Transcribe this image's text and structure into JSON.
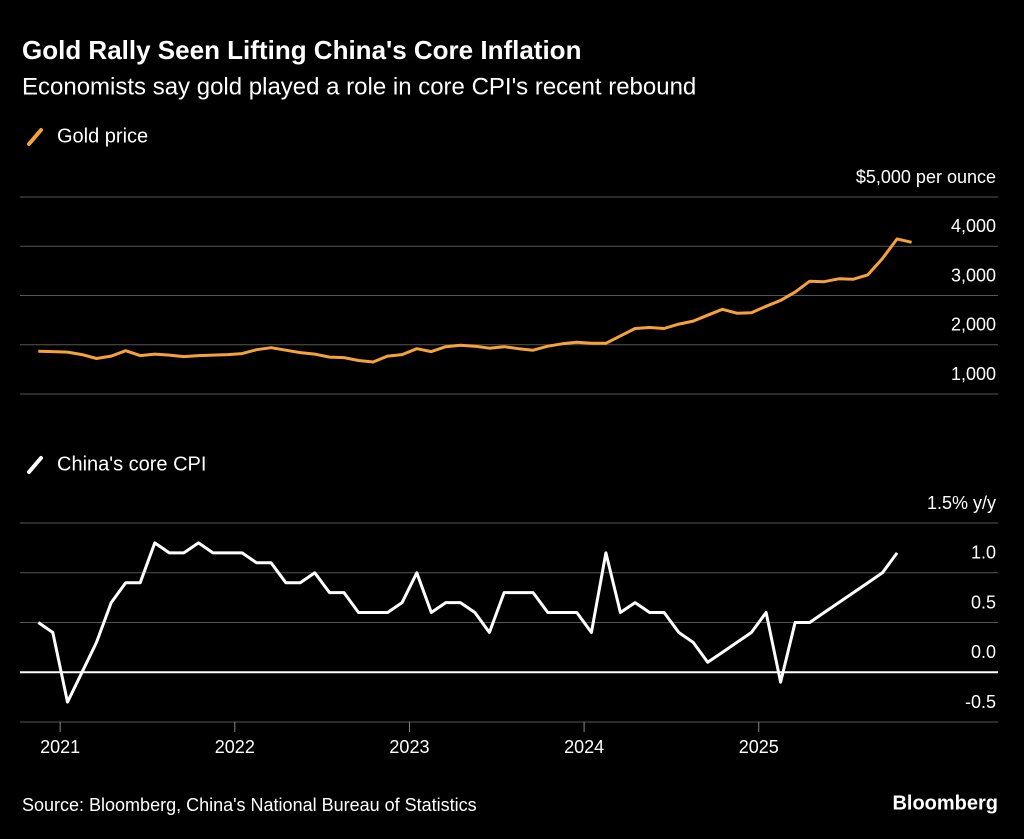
{
  "title": "Gold Rally Seen Lifting China's Core Inflation",
  "subtitle": "Economists say gold played a role in core CPI's recent rebound",
  "source": "Source: Bloomberg, China's National Bureau of Statistics",
  "logo": "Bloomberg",
  "chart_data": [
    {
      "type": "line",
      "grid": true,
      "x": [
        2020.875,
        2020.958,
        2021.042,
        2021.125,
        2021.208,
        2021.292,
        2021.375,
        2021.458,
        2021.542,
        2021.625,
        2021.708,
        2021.792,
        2021.875,
        2021.958,
        2022.042,
        2022.125,
        2022.208,
        2022.292,
        2022.375,
        2022.458,
        2022.542,
        2022.625,
        2022.708,
        2022.792,
        2022.875,
        2022.958,
        2023.042,
        2023.125,
        2023.208,
        2023.292,
        2023.375,
        2023.458,
        2023.542,
        2023.625,
        2023.708,
        2023.792,
        2023.875,
        2023.958,
        2024.042,
        2024.125,
        2024.208,
        2024.292,
        2024.375,
        2024.458,
        2024.542,
        2024.625,
        2024.708,
        2024.792,
        2024.875,
        2024.958,
        2025.042,
        2025.125,
        2025.208,
        2025.292,
        2025.375,
        2025.458,
        2025.542,
        2025.625,
        2025.708,
        2025.792,
        2025.875
      ],
      "series": [
        {
          "name": "Gold price",
          "color": "#f5a23a",
          "values": [
            1870,
            1860,
            1850,
            1800,
            1720,
            1770,
            1880,
            1780,
            1810,
            1790,
            1760,
            1780,
            1790,
            1800,
            1820,
            1900,
            1940,
            1890,
            1840,
            1810,
            1750,
            1740,
            1680,
            1650,
            1770,
            1800,
            1920,
            1860,
            1960,
            1990,
            1970,
            1930,
            1960,
            1920,
            1890,
            1970,
            2020,
            2050,
            2030,
            2030,
            2180,
            2330,
            2350,
            2330,
            2420,
            2480,
            2600,
            2720,
            2640,
            2650,
            2780,
            2900,
            3070,
            3290,
            3280,
            3340,
            3330,
            3420,
            3750,
            4150,
            4080
          ]
        }
      ],
      "xlim": [
        2020.77,
        2026.37
      ],
      "ylim": [
        1000,
        5000
      ],
      "yticks": [
        {
          "value": 1000,
          "label": "1,000"
        },
        {
          "value": 2000,
          "label": "2,000"
        },
        {
          "value": 3000,
          "label": "3,000"
        },
        {
          "value": 4000,
          "label": "4,000"
        },
        {
          "value": 5000,
          "label": "$5,000 per ounce"
        }
      ]
    },
    {
      "type": "line",
      "grid": true,
      "x": [
        2020.875,
        2020.958,
        2021.042,
        2021.125,
        2021.208,
        2021.292,
        2021.375,
        2021.458,
        2021.542,
        2021.625,
        2021.708,
        2021.792,
        2021.875,
        2021.958,
        2022.042,
        2022.125,
        2022.208,
        2022.292,
        2022.375,
        2022.458,
        2022.542,
        2022.625,
        2022.708,
        2022.792,
        2022.875,
        2022.958,
        2023.042,
        2023.125,
        2023.208,
        2023.292,
        2023.375,
        2023.458,
        2023.542,
        2023.625,
        2023.708,
        2023.792,
        2023.875,
        2023.958,
        2024.042,
        2024.125,
        2024.208,
        2024.292,
        2024.375,
        2024.458,
        2024.542,
        2024.625,
        2024.708,
        2024.792,
        2024.875,
        2024.958,
        2025.042,
        2025.125,
        2025.208,
        2025.292,
        2025.375,
        2025.458,
        2025.542,
        2025.625,
        2025.708,
        2025.792
      ],
      "series": [
        {
          "name": "China's core CPI",
          "color": "#ffffff",
          "values": [
            0.5,
            0.4,
            -0.3,
            0,
            0.3,
            0.7,
            0.9,
            0.9,
            1.3,
            1.2,
            1.2,
            1.3,
            1.2,
            1.2,
            1.2,
            1.1,
            1.1,
            0.9,
            0.9,
            1.0,
            0.8,
            0.8,
            0.6,
            0.6,
            0.6,
            0.7,
            1.0,
            0.6,
            0.7,
            0.7,
            0.6,
            0.4,
            0.8,
            0.8,
            0.8,
            0.6,
            0.6,
            0.6,
            0.4,
            1.2,
            0.6,
            0.7,
            0.6,
            0.6,
            0.4,
            0.3,
            0.1,
            0.2,
            0.3,
            0.4,
            0.6,
            -0.1,
            0.5,
            0.5,
            0.6,
            0.7,
            0.8,
            0.9,
            1.0,
            1.2
          ]
        }
      ],
      "xlim": [
        2020.77,
        2026.37
      ],
      "xticks": [
        2021,
        2022,
        2023,
        2024,
        2025
      ],
      "ylim": [
        -0.5,
        1.5
      ],
      "yticks": [
        -0.5,
        {
          "value": 0,
          "label": "0.0"
        },
        0.5,
        {
          "value": 1,
          "label": "1.0"
        },
        {
          "value": 1.5,
          "label": "1.5% y/y"
        }
      ]
    }
  ]
}
